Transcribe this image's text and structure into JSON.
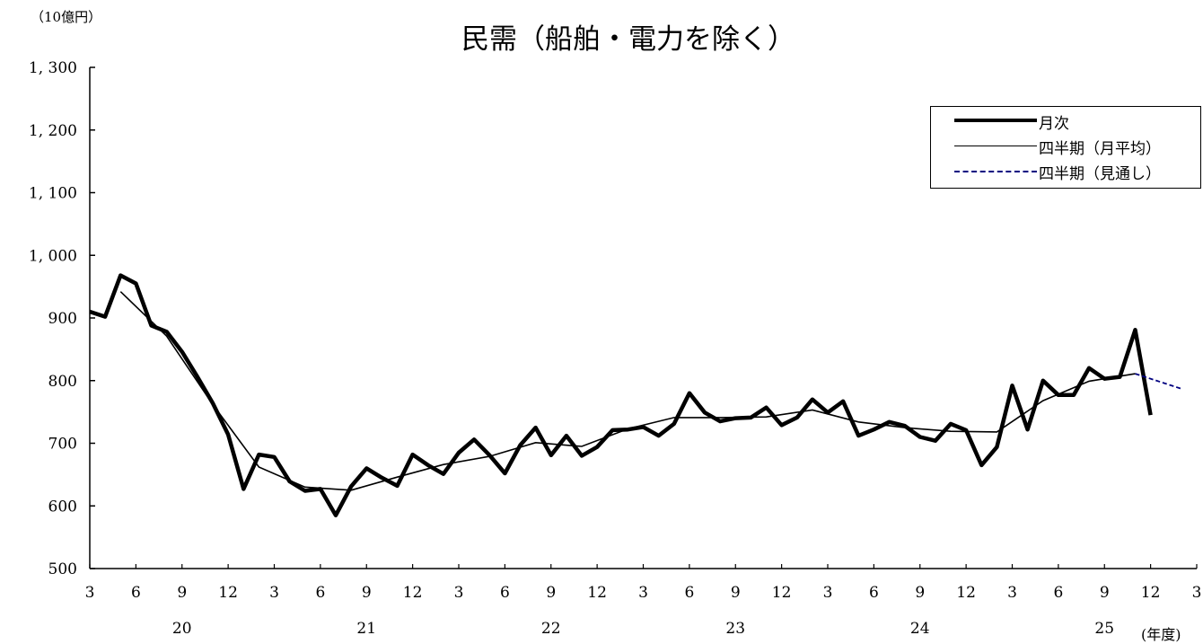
{
  "chart_data": {
    "type": "line",
    "title": "民需（船舶・電力を除く）",
    "unit": "（10億円）",
    "xlabel": "(年度)",
    "ylim": [
      500,
      1300
    ],
    "yticks": [
      500,
      600,
      700,
      800,
      900,
      1000,
      1100,
      1200,
      1300
    ],
    "ytick_labels": [
      "500",
      "600",
      "700",
      "800",
      "900",
      "1, 000",
      "1, 100",
      "1, 200",
      "1, 300"
    ],
    "month_ticks": [
      "3",
      "6",
      "9",
      "12",
      "3",
      "6",
      "9",
      "12",
      "3",
      "6",
      "9",
      "12",
      "3",
      "6",
      "9",
      "12",
      "3",
      "6",
      "9",
      "12",
      "3",
      "6",
      "9",
      "12",
      "3"
    ],
    "fiscal_years": [
      "20",
      "21",
      "22",
      "23",
      "24",
      "25"
    ],
    "series": [
      {
        "name": "月次",
        "color": "#000000",
        "style": "thick",
        "start": "2020-03",
        "values": [
          910,
          902,
          968,
          955,
          888,
          878,
          846,
          806,
          764,
          714,
          627,
          682,
          678,
          639,
          624,
          627,
          585,
          631,
          660,
          645,
          632,
          682,
          665,
          651,
          685,
          706,
          681,
          652,
          697,
          725,
          681,
          712,
          680,
          694,
          721,
          722,
          726,
          712,
          731,
          780,
          749,
          735,
          740,
          741,
          757,
          729,
          741,
          770,
          749,
          767,
          712,
          722,
          734,
          728,
          710,
          704,
          731,
          721,
          665,
          694,
          792,
          722,
          800,
          777,
          777,
          820,
          803,
          806,
          881,
          745
        ]
      },
      {
        "name": "四半期（月平均）",
        "color": "#000000",
        "style": "thin",
        "points": [
          {
            "x": "2020-05",
            "y": 942
          },
          {
            "x": "2020-08",
            "y": 871
          },
          {
            "x": "2020-11",
            "y": 762
          },
          {
            "x": "2021-02",
            "y": 662
          },
          {
            "x": "2021-05",
            "y": 630
          },
          {
            "x": "2021-08",
            "y": 625
          },
          {
            "x": "2021-11",
            "y": 646
          },
          {
            "x": "2022-02",
            "y": 666
          },
          {
            "x": "2022-05",
            "y": 679
          },
          {
            "x": "2022-08",
            "y": 701
          },
          {
            "x": "2022-11",
            "y": 695
          },
          {
            "x": "2023-02",
            "y": 723
          },
          {
            "x": "2023-05",
            "y": 741
          },
          {
            "x": "2023-08",
            "y": 741
          },
          {
            "x": "2023-11",
            "y": 742
          },
          {
            "x": "2024-02",
            "y": 753
          },
          {
            "x": "2024-05",
            "y": 734
          },
          {
            "x": "2024-08",
            "y": 725
          },
          {
            "x": "2024-11",
            "y": 719
          },
          {
            "x": "2025-02",
            "y": 718
          },
          {
            "x": "2025-05",
            "y": 768
          },
          {
            "x": "2025-08",
            "y": 799
          },
          {
            "x": "2025-11",
            "y": 811
          }
        ]
      },
      {
        "name": "四半期（見通し）",
        "color": "#000080",
        "style": "dashed",
        "points": [
          {
            "x": "2025-11",
            "y": 811
          },
          {
            "x": "2026-02",
            "y": 787
          }
        ]
      }
    ],
    "legend_position": "top-right",
    "grid": false
  }
}
